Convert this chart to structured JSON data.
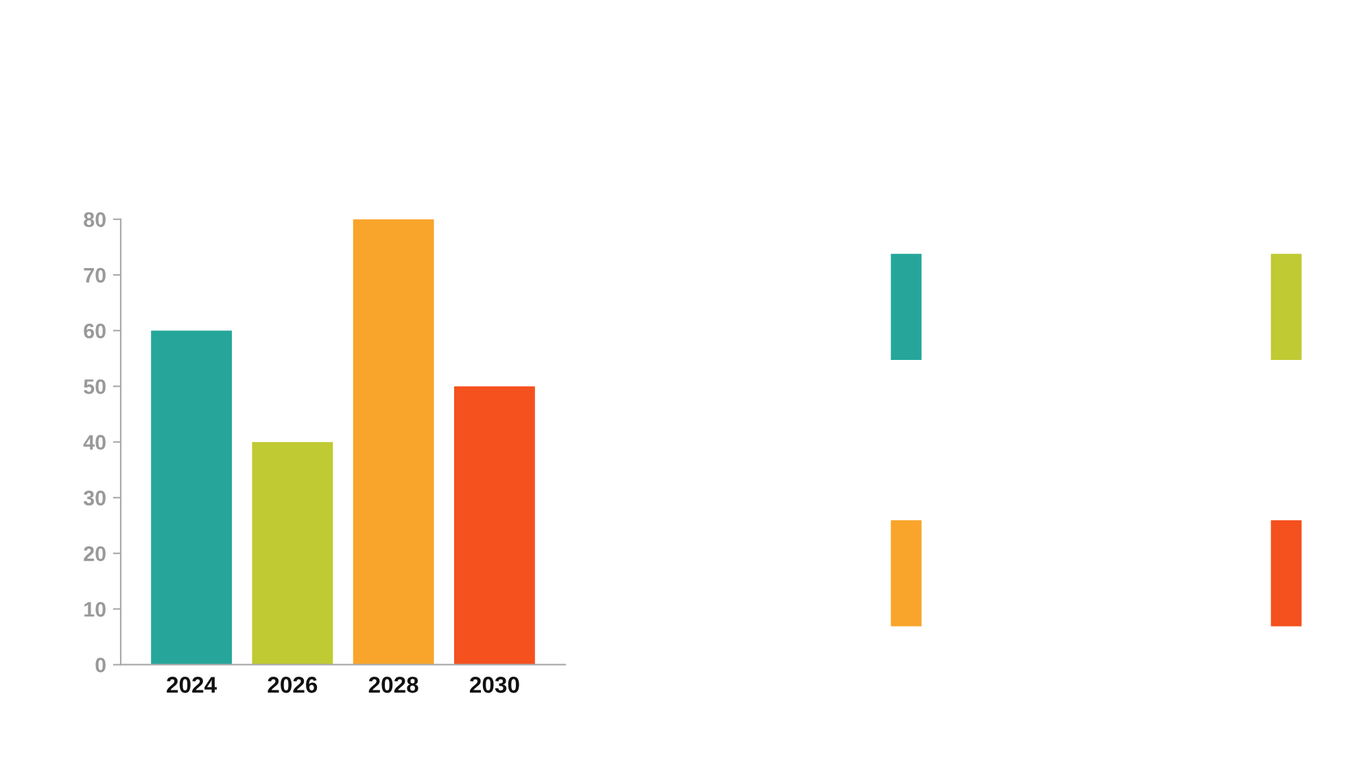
{
  "chart_data": {
    "type": "bar",
    "categories": [
      "2024",
      "2026",
      "2028",
      "2030"
    ],
    "values": [
      60,
      40,
      80,
      50
    ],
    "colors": [
      "#26a69a",
      "#c0ca33",
      "#f9a52b",
      "#f4511e"
    ],
    "ylim": [
      0,
      80
    ],
    "yticks": [
      0,
      10,
      20,
      30,
      40,
      50,
      60,
      70,
      80
    ],
    "grid": false
  }
}
